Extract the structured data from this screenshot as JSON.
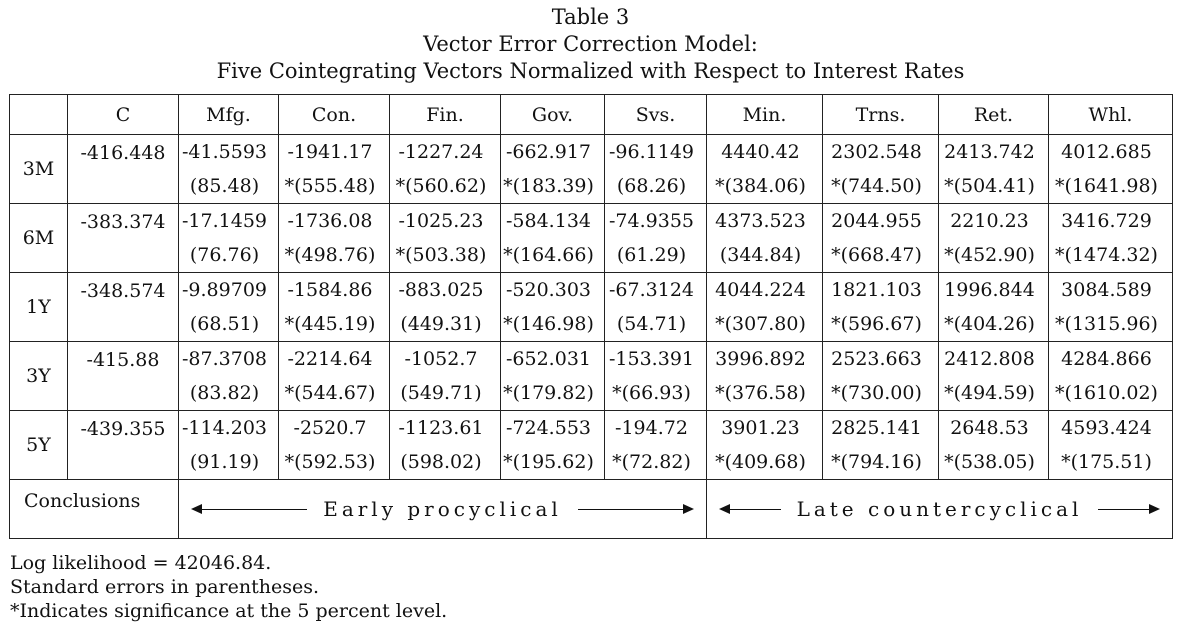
{
  "title": {
    "line1": "Table 3",
    "line2": "Vector Error Correction Model:",
    "line3": "Five Cointegrating Vectors Normalized with Respect to Interest Rates"
  },
  "table": {
    "headers": [
      "",
      "C",
      "Mfg.",
      "Con.",
      "Fin.",
      "Gov.",
      "Svs.",
      "Min.",
      "Trns.",
      "Ret.",
      "Whl."
    ],
    "rows": [
      {
        "label": "3M",
        "constant": "-416.448",
        "coef": [
          "-41.5593",
          "-1941.17",
          "-1227.24",
          "-662.917",
          "-96.1149",
          "4440.42",
          "2302.548",
          "2413.742",
          "4012.685"
        ],
        "se": [
          "(85.48)",
          "*(555.48)",
          "*(560.62)",
          "*(183.39)",
          "(68.26)",
          "*(384.06)",
          "*(744.50)",
          "*(504.41)",
          "*(1641.98)"
        ]
      },
      {
        "label": "6M",
        "constant": "-383.374",
        "coef": [
          "-17.1459",
          "-1736.08",
          "-1025.23",
          "-584.134",
          "-74.9355",
          "4373.523",
          "2044.955",
          "2210.23",
          "3416.729"
        ],
        "se": [
          "(76.76)",
          "*(498.76)",
          "*(503.38)",
          "*(164.66)",
          "(61.29)",
          "(344.84)",
          "*(668.47)",
          "*(452.90)",
          "*(1474.32)"
        ]
      },
      {
        "label": "1Y",
        "constant": "-348.574",
        "coef": [
          "-9.89709",
          "-1584.86",
          "-883.025",
          "-520.303",
          "-67.3124",
          "4044.224",
          "1821.103",
          "1996.844",
          "3084.589"
        ],
        "se": [
          "(68.51)",
          "*(445.19)",
          "(449.31)",
          "*(146.98)",
          "(54.71)",
          "*(307.80)",
          "*(596.67)",
          "*(404.26)",
          "*(1315.96)"
        ]
      },
      {
        "label": "3Y",
        "constant": "-415.88",
        "coef": [
          "-87.3708",
          "-2214.64",
          "-1052.7",
          "-652.031",
          "-153.391",
          "3996.892",
          "2523.663",
          "2412.808",
          "4284.866"
        ],
        "se": [
          "(83.82)",
          "*(544.67)",
          "(549.71)",
          "*(179.82)",
          "*(66.93)",
          "*(376.58)",
          "*(730.00)",
          "*(494.59)",
          "*(1610.02)"
        ]
      },
      {
        "label": "5Y",
        "constant": "-439.355",
        "coef": [
          "-114.203",
          "-2520.7",
          "-1123.61",
          "-724.553",
          "-194.72",
          "3901.23",
          "2825.141",
          "2648.53",
          "4593.424"
        ],
        "se": [
          "(91.19)",
          "*(592.53)",
          "(598.02)",
          "*(195.62)",
          "*(72.82)",
          "*(409.68)",
          "*(794.16)",
          "*(538.05)",
          "*(175.51)"
        ]
      }
    ],
    "conclusions": {
      "label": "Conclusions",
      "early": "Early procyclical",
      "late": "Late countercyclical"
    }
  },
  "notes": {
    "loglik": "Log likelihood = 42046.84.",
    "se_note": "Standard errors in parentheses.",
    "sig_note": "*Indicates significance at the 5 percent level."
  }
}
